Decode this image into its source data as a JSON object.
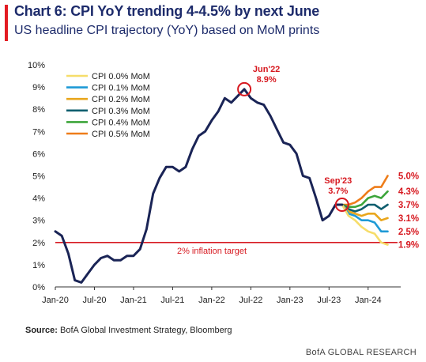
{
  "header": {
    "title": "Chart 6: CPI YoY trending 4-4.5% by next June",
    "subtitle": "US headline CPI trajectory (YoY) based on MoM prints"
  },
  "footer": {
    "source_label": "Source:",
    "source_text": "BofA Global Investment Strategy, Bloomberg",
    "brand": "BofA GLOBAL RESEARCH"
  },
  "colors": {
    "title": "#1d2b6b",
    "history_line": "#1a2456",
    "target_line": "#d71920",
    "annotation": "#d71920"
  },
  "chart_data": {
    "type": "line",
    "xlim": [
      "2020-01",
      "2024-06"
    ],
    "ylim": [
      0,
      10
    ],
    "y_ticks": [
      "0%",
      "1%",
      "2%",
      "3%",
      "4%",
      "5%",
      "6%",
      "7%",
      "8%",
      "9%",
      "10%"
    ],
    "x_ticks": [
      {
        "label": "Jan-20",
        "date": "2020-01"
      },
      {
        "label": "Jul-20",
        "date": "2020-07"
      },
      {
        "label": "Jan-21",
        "date": "2021-01"
      },
      {
        "label": "Jul-21",
        "date": "2021-07"
      },
      {
        "label": "Jan-22",
        "date": "2022-01"
      },
      {
        "label": "Jul-22",
        "date": "2022-07"
      },
      {
        "label": "Jan-23",
        "date": "2023-01"
      },
      {
        "label": "Jul-23",
        "date": "2023-07"
      },
      {
        "label": "Jan-24",
        "date": "2024-01"
      }
    ],
    "grid": false,
    "legend_position": "top-left",
    "history": {
      "name": "",
      "color": "#1a2456",
      "points": [
        [
          "2020-01",
          2.5
        ],
        [
          "2020-02",
          2.3
        ],
        [
          "2020-03",
          1.5
        ],
        [
          "2020-04",
          0.3
        ],
        [
          "2020-05",
          0.2
        ],
        [
          "2020-06",
          0.6
        ],
        [
          "2020-07",
          1.0
        ],
        [
          "2020-08",
          1.3
        ],
        [
          "2020-09",
          1.4
        ],
        [
          "2020-10",
          1.2
        ],
        [
          "2020-11",
          1.2
        ],
        [
          "2020-12",
          1.4
        ],
        [
          "2021-01",
          1.4
        ],
        [
          "2021-02",
          1.7
        ],
        [
          "2021-03",
          2.6
        ],
        [
          "2021-04",
          4.2
        ],
        [
          "2021-05",
          4.9
        ],
        [
          "2021-06",
          5.4
        ],
        [
          "2021-07",
          5.4
        ],
        [
          "2021-08",
          5.2
        ],
        [
          "2021-09",
          5.4
        ],
        [
          "2021-10",
          6.2
        ],
        [
          "2021-11",
          6.8
        ],
        [
          "2021-12",
          7.0
        ],
        [
          "2022-01",
          7.5
        ],
        [
          "2022-02",
          7.9
        ],
        [
          "2022-03",
          8.5
        ],
        [
          "2022-04",
          8.3
        ],
        [
          "2022-05",
          8.6
        ],
        [
          "2022-06",
          8.9
        ],
        [
          "2022-07",
          8.5
        ],
        [
          "2022-08",
          8.3
        ],
        [
          "2022-09",
          8.2
        ],
        [
          "2022-10",
          7.7
        ],
        [
          "2022-11",
          7.1
        ],
        [
          "2022-12",
          6.5
        ],
        [
          "2023-01",
          6.4
        ],
        [
          "2023-02",
          6.0
        ],
        [
          "2023-03",
          5.0
        ],
        [
          "2023-04",
          4.9
        ],
        [
          "2023-05",
          4.0
        ],
        [
          "2023-06",
          3.0
        ],
        [
          "2023-07",
          3.2
        ],
        [
          "2023-08",
          3.7
        ],
        [
          "2023-09",
          3.7
        ]
      ]
    },
    "series": [
      {
        "name": "CPI 0.0% MoM",
        "color": "#f6dd6a",
        "end_label": "1.9%",
        "points": [
          [
            "2023-09",
            3.7
          ],
          [
            "2023-10",
            3.2
          ],
          [
            "2023-11",
            3.0
          ],
          [
            "2023-12",
            2.7
          ],
          [
            "2024-01",
            2.5
          ],
          [
            "2024-02",
            2.4
          ],
          [
            "2024-03",
            2.0
          ],
          [
            "2024-04",
            1.9
          ]
        ]
      },
      {
        "name": "CPI 0.1% MoM",
        "color": "#1e9ad6",
        "end_label": "2.5%",
        "points": [
          [
            "2023-09",
            3.7
          ],
          [
            "2023-10",
            3.3
          ],
          [
            "2023-11",
            3.2
          ],
          [
            "2023-12",
            3.0
          ],
          [
            "2024-01",
            3.0
          ],
          [
            "2024-02",
            2.9
          ],
          [
            "2024-03",
            2.5
          ],
          [
            "2024-04",
            2.5
          ]
        ]
      },
      {
        "name": "CPI 0.2% MoM",
        "color": "#e9a61c",
        "end_label": "3.1%",
        "points": [
          [
            "2023-09",
            3.7
          ],
          [
            "2023-10",
            3.4
          ],
          [
            "2023-11",
            3.3
          ],
          [
            "2023-12",
            3.2
          ],
          [
            "2024-01",
            3.3
          ],
          [
            "2024-02",
            3.3
          ],
          [
            "2024-03",
            3.0
          ],
          [
            "2024-04",
            3.1
          ]
        ]
      },
      {
        "name": "CPI 0.3% MoM",
        "color": "#0f5e6e",
        "end_label": "3.7%",
        "points": [
          [
            "2023-09",
            3.7
          ],
          [
            "2023-10",
            3.5
          ],
          [
            "2023-11",
            3.4
          ],
          [
            "2023-12",
            3.5
          ],
          [
            "2024-01",
            3.7
          ],
          [
            "2024-02",
            3.7
          ],
          [
            "2024-03",
            3.5
          ],
          [
            "2024-04",
            3.7
          ]
        ]
      },
      {
        "name": "CPI 0.4% MoM",
        "color": "#3ca53a",
        "end_label": "4.3%",
        "points": [
          [
            "2023-09",
            3.7
          ],
          [
            "2023-10",
            3.6
          ],
          [
            "2023-11",
            3.6
          ],
          [
            "2023-12",
            3.7
          ],
          [
            "2024-01",
            4.0
          ],
          [
            "2024-02",
            4.1
          ],
          [
            "2024-03",
            4.0
          ],
          [
            "2024-04",
            4.3
          ]
        ]
      },
      {
        "name": "CPI 0.5% MoM",
        "color": "#ee7d1a",
        "end_label": "5.0%",
        "points": [
          [
            "2023-09",
            3.7
          ],
          [
            "2023-10",
            3.7
          ],
          [
            "2023-11",
            3.8
          ],
          [
            "2023-12",
            4.0
          ],
          [
            "2024-01",
            4.3
          ],
          [
            "2024-02",
            4.5
          ],
          [
            "2024-03",
            4.5
          ],
          [
            "2024-04",
            5.0
          ]
        ]
      }
    ],
    "annotations": [
      {
        "title": "Jun'22",
        "value_label": "8.9%",
        "date": "2022-06",
        "value": 8.9
      },
      {
        "title": "Sep'23",
        "value_label": "3.7%",
        "date": "2023-09",
        "value": 3.7
      }
    ],
    "reference_line": {
      "label": "2% inflation target",
      "value": 2
    }
  }
}
